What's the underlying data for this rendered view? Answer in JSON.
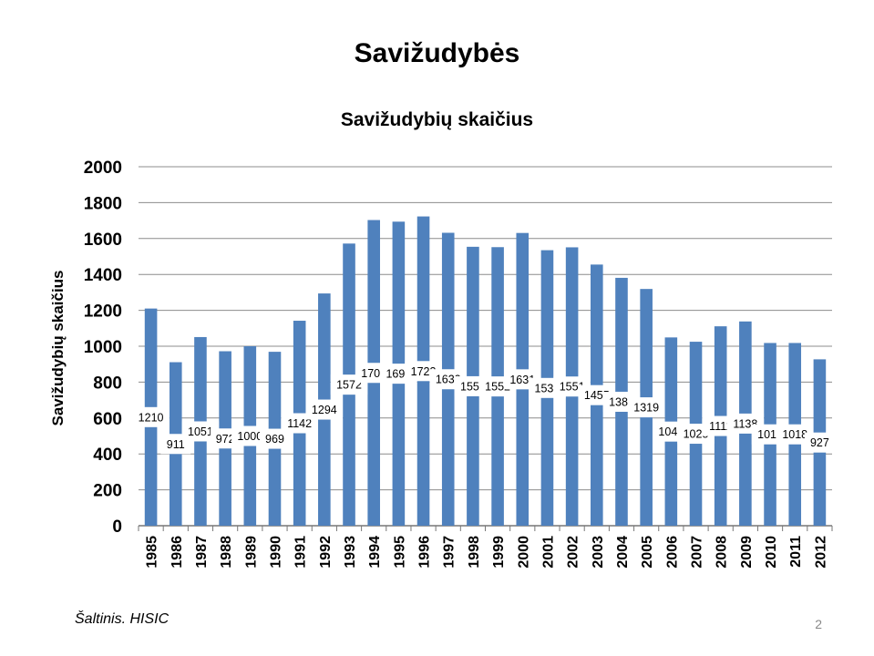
{
  "slide": {
    "title": "Savižudybės",
    "source": "Šaltinis. HISIC",
    "page_number": "2"
  },
  "colors": {
    "bar": "#4f81bd",
    "grid": "#8c8c8c"
  },
  "chart_data": {
    "type": "bar",
    "title": "Savižudybių skaičius",
    "xlabel": "",
    "ylabel": "Savižudybių skaičius",
    "ylim": [
      0,
      2000
    ],
    "yticks": [
      0,
      200,
      400,
      600,
      800,
      1000,
      1200,
      1400,
      1600,
      1800,
      2000
    ],
    "grid": true,
    "categories": [
      "1985",
      "1986",
      "1987",
      "1988",
      "1989",
      "1990",
      "1991",
      "1992",
      "1993",
      "1994",
      "1995",
      "1996",
      "1997",
      "1998",
      "1999",
      "2000",
      "2001",
      "2002",
      "2003",
      "2004",
      "2005",
      "2006",
      "2007",
      "2008",
      "2009",
      "2010",
      "2011",
      "2012"
    ],
    "values": [
      1210,
      911,
      1051,
      972,
      1000,
      969,
      1142,
      1294,
      1572,
      1703,
      1694,
      1723,
      1632,
      1554,
      1552,
      1631,
      1535,
      1551,
      1455,
      1381,
      1319,
      1049,
      1025,
      1111,
      1138,
      1018,
      1018,
      927
    ]
  }
}
